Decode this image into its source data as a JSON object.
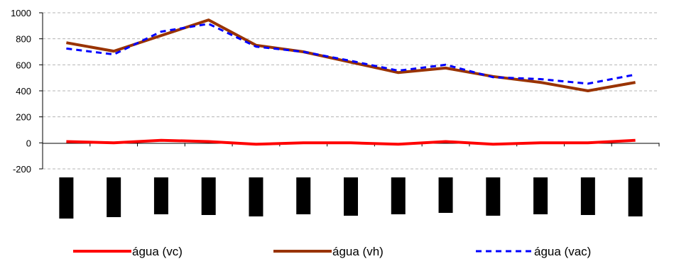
{
  "chart_data": {
    "type": "line",
    "title": "",
    "xlabel": "",
    "ylabel": "",
    "ylim": [
      -200,
      1000
    ],
    "yticks": [
      1000,
      800,
      600,
      400,
      200,
      0,
      -200
    ],
    "ytick_labels": [
      "1000",
      "800",
      "600",
      "400",
      "200",
      "0",
      "-200"
    ],
    "grid": true,
    "legend_position": "bottom",
    "x": [
      1,
      2,
      3,
      4,
      5,
      6,
      7,
      8,
      9,
      10,
      11,
      12,
      13
    ],
    "category_markers": [
      -580,
      -560,
      -520,
      -530,
      -550,
      -520,
      -540,
      -520,
      -500,
      -540,
      -520,
      -530,
      -550
    ],
    "series": [
      {
        "name": "água (vc)",
        "color": "#ff0000",
        "style": "solid",
        "values": [
          10,
          0,
          20,
          10,
          -10,
          0,
          0,
          -10,
          10,
          -10,
          0,
          0,
          20
        ]
      },
      {
        "name": "água (vh)",
        "color": "#993300",
        "style": "solid",
        "values": [
          770,
          705,
          825,
          945,
          750,
          700,
          620,
          540,
          575,
          510,
          465,
          400,
          465
        ]
      },
      {
        "name": "água (vac)",
        "color": "#0000ff",
        "style": "dashed",
        "values": [
          725,
          680,
          855,
          915,
          740,
          700,
          630,
          555,
          600,
          505,
          490,
          455,
          525
        ]
      }
    ]
  }
}
